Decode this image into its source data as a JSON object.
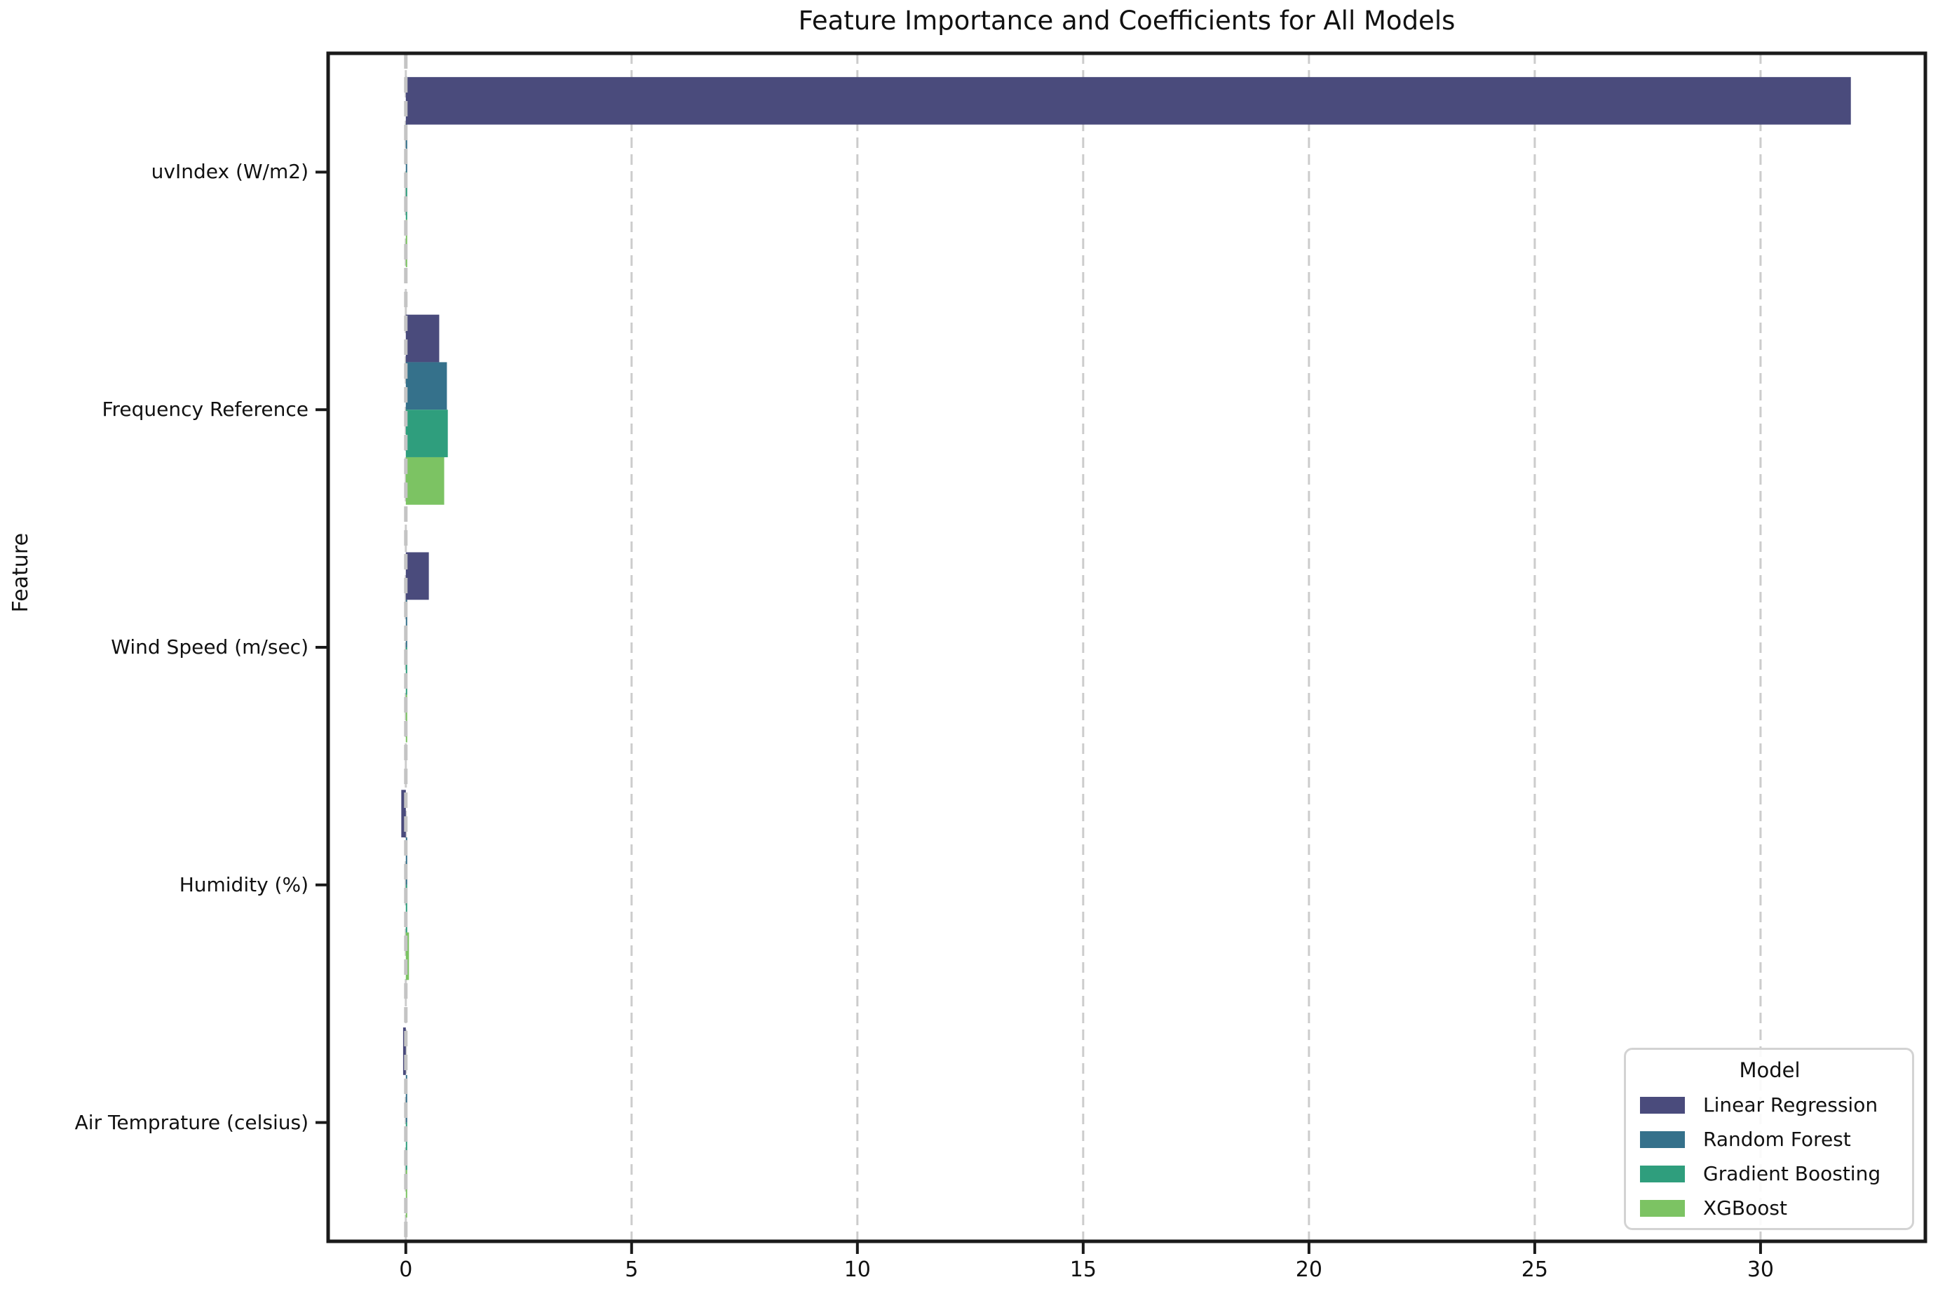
{
  "chart_data": {
    "type": "bar",
    "orientation": "horizontal",
    "title": "Feature Importance and Coefficients for All Models",
    "xlabel": "",
    "ylabel": "Feature",
    "categories": [
      "uvIndex (W/m2)",
      "Frequency Reference",
      "Wind Speed (m/sec)",
      "Humidity (%)",
      "Air Temprature (celsius)"
    ],
    "series": [
      {
        "name": "Linear Regression",
        "color": "#4a4b7c",
        "values": [
          32.0,
          0.74,
          0.51,
          -0.1,
          -0.06
        ]
      },
      {
        "name": "Random Forest",
        "color": "#35718b",
        "values": [
          0.02,
          0.91,
          0.01,
          0.01,
          0.005
        ]
      },
      {
        "name": "Gradient Boosting",
        "color": "#2f9e7d",
        "values": [
          0.02,
          0.93,
          0.01,
          0.01,
          0.005
        ]
      },
      {
        "name": "XGBoost",
        "color": "#7cc363",
        "values": [
          0.02,
          0.85,
          0.01,
          0.07,
          0.005
        ]
      }
    ],
    "x_ticks": [
      0,
      5,
      10,
      15,
      20,
      25,
      30
    ],
    "xlim": [
      -1.72,
      33.65
    ],
    "grid": {
      "vertical_dashed_at_xticks": true,
      "zero_line_dashed": true
    },
    "legend": {
      "title": "Model",
      "position": "lower right"
    },
    "colors": {
      "grid_line": "#cccccc",
      "zero_line": "#c4c4c4",
      "axis_spine": "#1a1a1a",
      "background": "#ffffff",
      "text": "#111111"
    }
  }
}
